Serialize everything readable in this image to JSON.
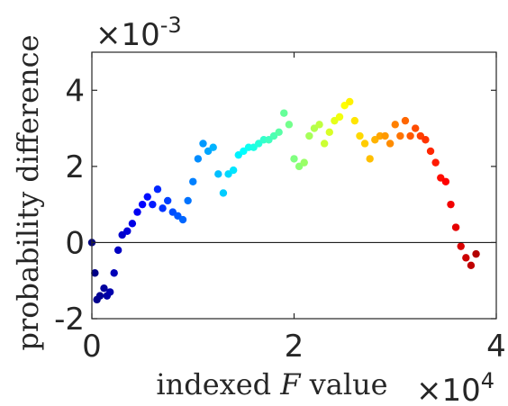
{
  "chart_data": {
    "type": "scatter",
    "xlabel_prefix": "indexed ",
    "xlabel_var": "F",
    "xlabel_suffix": " value",
    "ylabel": "probability difference",
    "xlim": [
      0,
      40000
    ],
    "ylim": [
      -0.002,
      0.005
    ],
    "x_ticks": [
      0,
      20000,
      40000
    ],
    "x_tick_labels": [
      "0",
      "2",
      "4"
    ],
    "y_ticks": [
      -0.002,
      0,
      0.002,
      0.004
    ],
    "y_tick_labels": [
      "-2",
      "0",
      "2",
      "4"
    ],
    "x_multiplier": {
      "base": "×10",
      "exp": "4"
    },
    "y_multiplier": {
      "base": "×10",
      "exp": "-3"
    },
    "zero_line": true,
    "grid": false,
    "colormap": "jet (dark blue → cyan → yellow → dark red along x)",
    "series": [
      {
        "x": [
          0,
          300,
          500,
          800,
          1200,
          1500,
          1800,
          2200,
          2600,
          3000,
          3500,
          4000,
          4500,
          5000,
          5500,
          6000,
          6500,
          7000,
          7500,
          8000,
          8500,
          9000,
          9500,
          10000,
          10500,
          11000,
          11500,
          12000,
          12500,
          13000,
          13500,
          14000,
          14500,
          15000,
          15500,
          16000,
          16500,
          17000,
          17500,
          18000,
          18500,
          19000,
          19500,
          20000,
          20500,
          21000,
          21500,
          22000,
          22500,
          23000,
          23500,
          24000,
          24500,
          25000,
          25500,
          26000,
          26500,
          27000,
          27500,
          28000,
          28500,
          29000,
          29500,
          30000,
          30500,
          31000,
          31500,
          32000,
          32500,
          33000,
          33500,
          34000,
          34500,
          35000,
          35500,
          36000,
          36500,
          37000,
          37500,
          38000
        ],
        "y": [
          0.0,
          -0.0008,
          -0.0015,
          -0.0014,
          -0.0012,
          -0.0014,
          -0.0013,
          -0.0008,
          -0.0002,
          0.0002,
          0.0003,
          0.0005,
          0.0008,
          0.001,
          0.0012,
          0.001,
          0.0014,
          0.0009,
          0.0011,
          0.0008,
          0.0007,
          0.0006,
          0.0011,
          0.0016,
          0.0022,
          0.0026,
          0.0024,
          0.0025,
          0.0018,
          0.0013,
          0.0018,
          0.0019,
          0.0023,
          0.0024,
          0.0025,
          0.0025,
          0.0026,
          0.0027,
          0.0027,
          0.0028,
          0.0029,
          0.0034,
          0.0031,
          0.0022,
          0.002,
          0.0021,
          0.0028,
          0.003,
          0.0031,
          0.0026,
          0.0029,
          0.0032,
          0.0033,
          0.0036,
          0.0037,
          0.0032,
          0.0028,
          0.0026,
          0.0022,
          0.0027,
          0.0028,
          0.0028,
          0.0026,
          0.0031,
          0.0028,
          0.0032,
          0.0028,
          0.003,
          0.0028,
          0.0027,
          0.0024,
          0.0021,
          0.0017,
          0.0016,
          0.001,
          0.0004,
          -0.0001,
          -0.0004,
          -0.0006,
          -0.0003
        ]
      }
    ]
  }
}
